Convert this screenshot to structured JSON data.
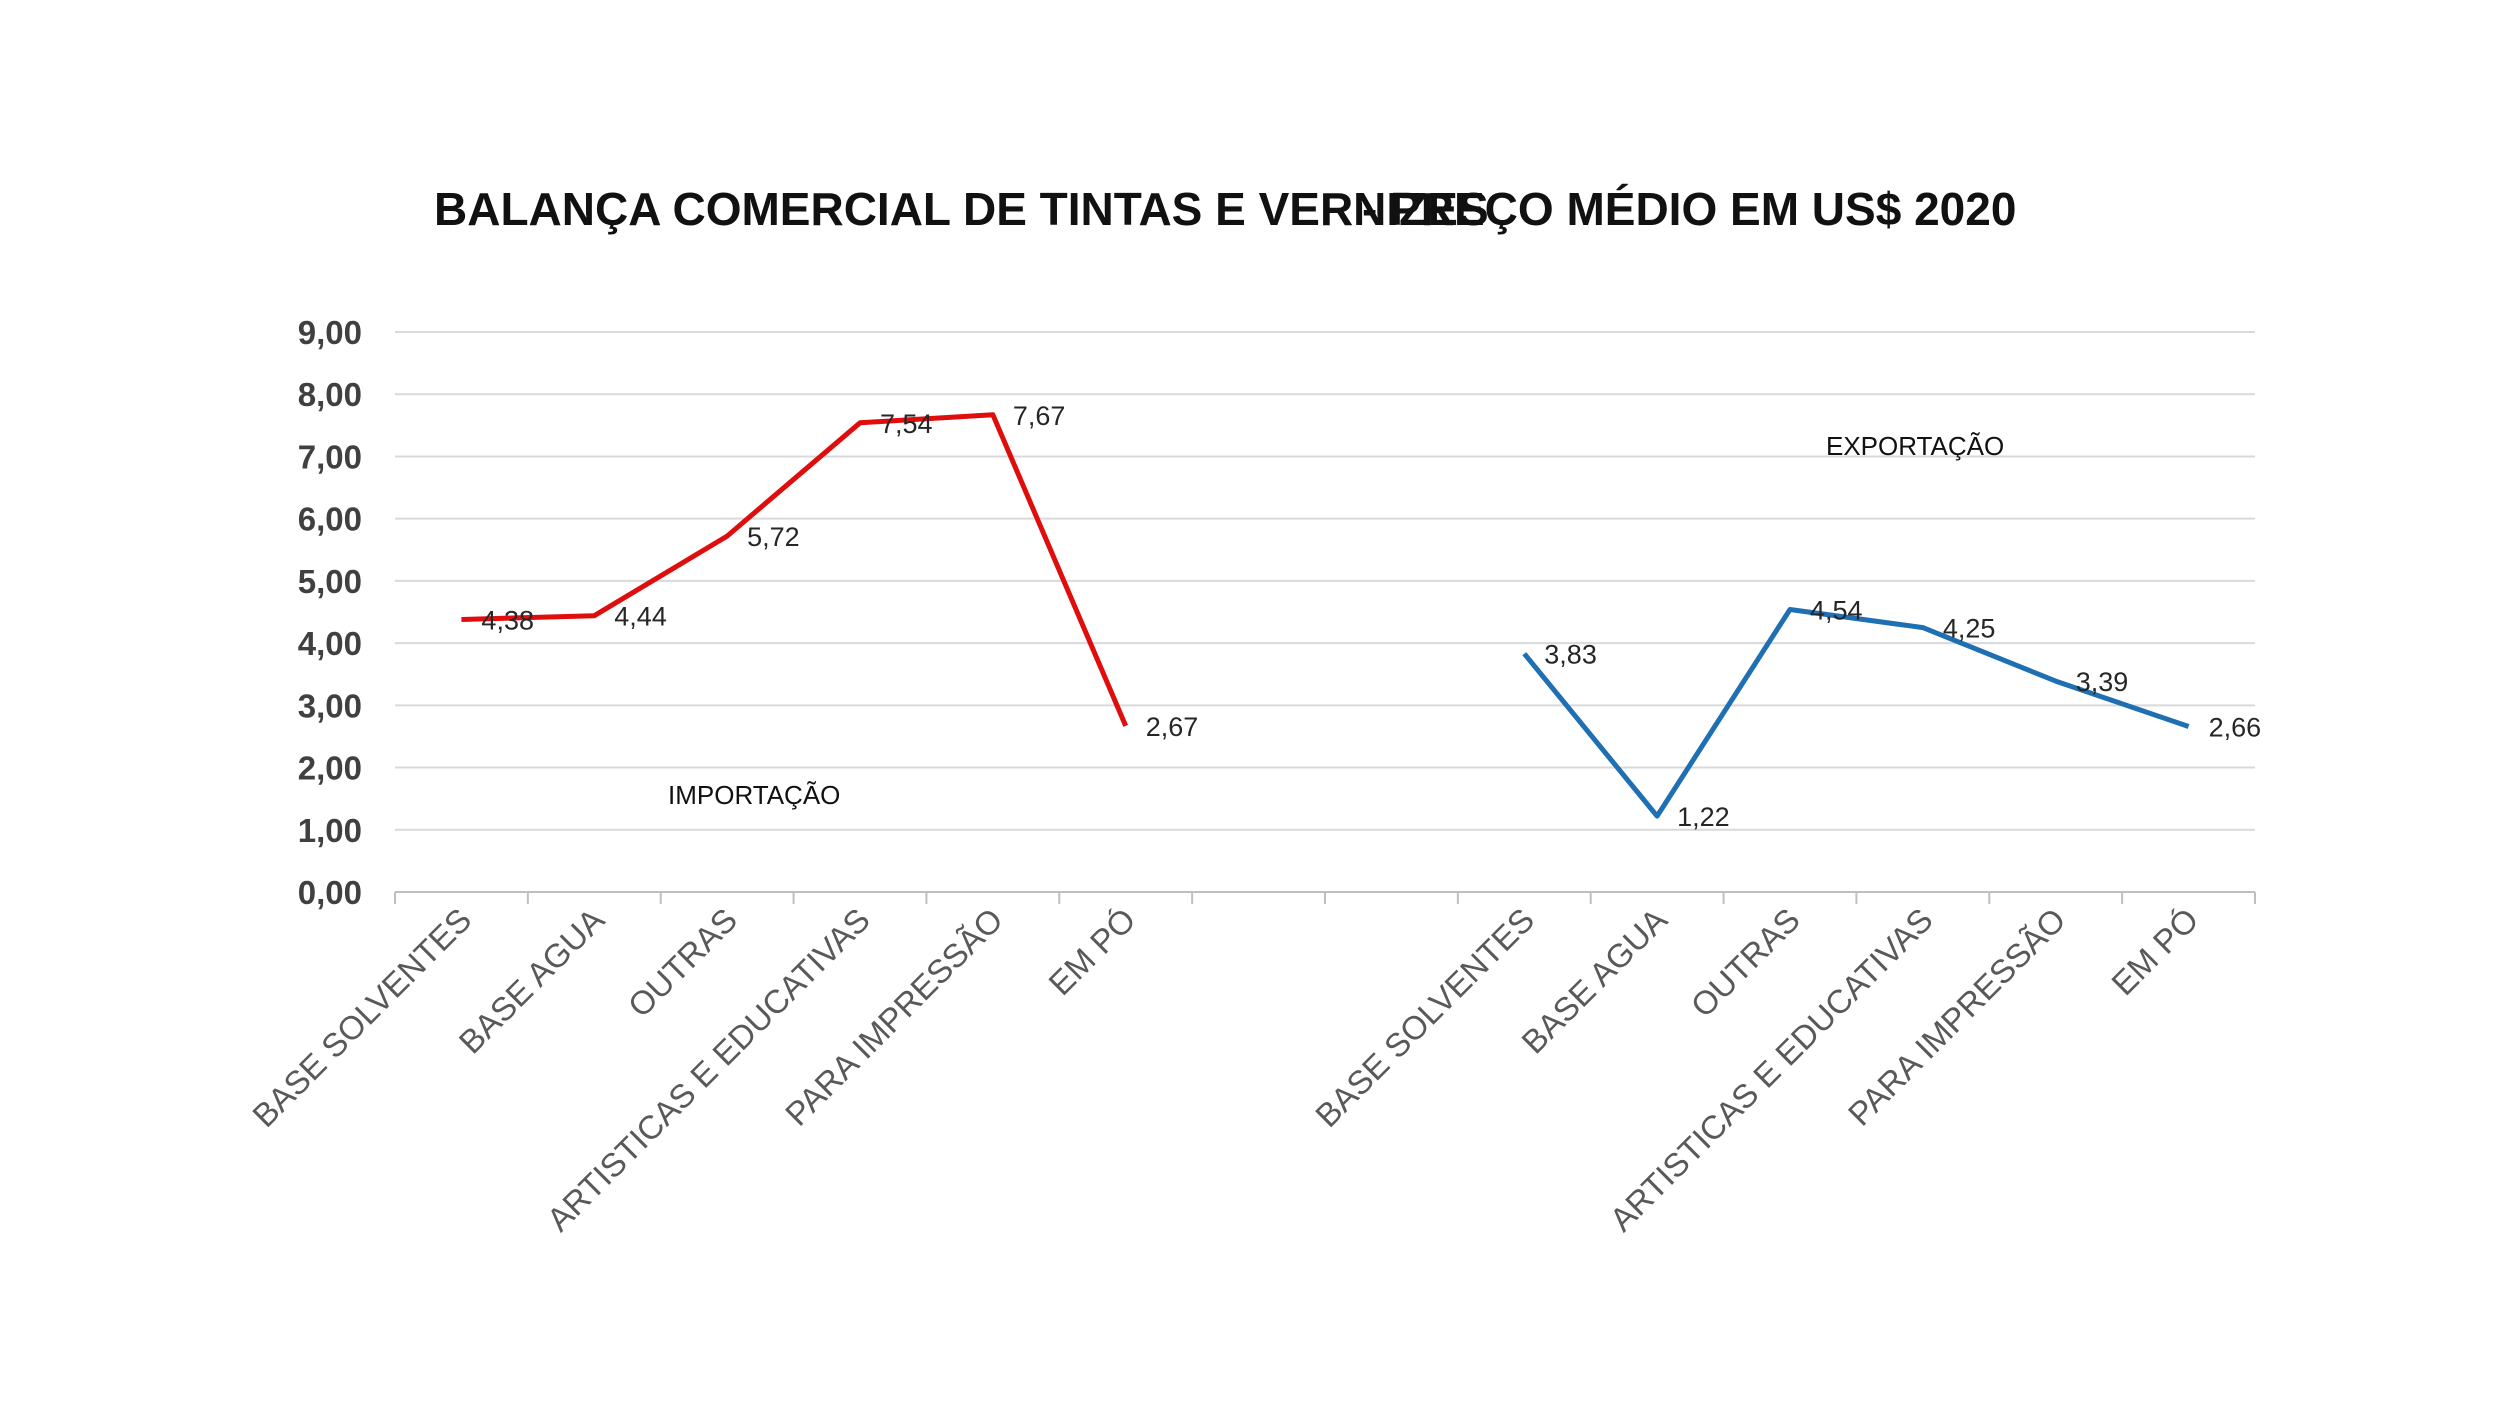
{
  "chart_data": {
    "type": "line",
    "title_part1": "BALANÇA COMERCIAL DE TINTAS E VERNIZES",
    "title_part2": "- PREÇO MÉDIO EM US$ 2020",
    "ylim": [
      0,
      9
    ],
    "yticks": [
      "0,00",
      "1,00",
      "2,00",
      "3,00",
      "4,00",
      "5,00",
      "6,00",
      "7,00",
      "8,00",
      "9,00"
    ],
    "grid": true,
    "categories": [
      "BASE SOLVENTES",
      "BASE AGUA",
      "OUTRAS",
      "ARTISTICAS E EDUCATIVAS",
      "PARA IMPRESSÃO",
      "EM PÓ",
      "",
      "",
      "BASE SOLVENTES",
      "BASE AGUA",
      "OUTRAS",
      "ARTISTICAS E EDUCATIVAS",
      "PARA IMPRESSÃO",
      "EM PÓ"
    ],
    "series": [
      {
        "name": "IMPORTAÇÃO",
        "color": "#e00d0d",
        "values": [
          4.38,
          4.44,
          5.72,
          7.54,
          7.67,
          2.67,
          null,
          null,
          null,
          null,
          null,
          null,
          null,
          null
        ],
        "labels": [
          "4,38",
          "4,44",
          "5,72",
          "7,54",
          "7,67",
          "2,67"
        ]
      },
      {
        "name": "EXPORTAÇÃO",
        "color": "#1f6fb3",
        "values": [
          null,
          null,
          null,
          null,
          null,
          null,
          null,
          null,
          3.83,
          1.22,
          4.54,
          4.25,
          3.39,
          2.66
        ],
        "labels": [
          "3,83",
          "1,22",
          "4,54",
          "4,25",
          "3,39",
          "2,66"
        ]
      }
    ]
  }
}
